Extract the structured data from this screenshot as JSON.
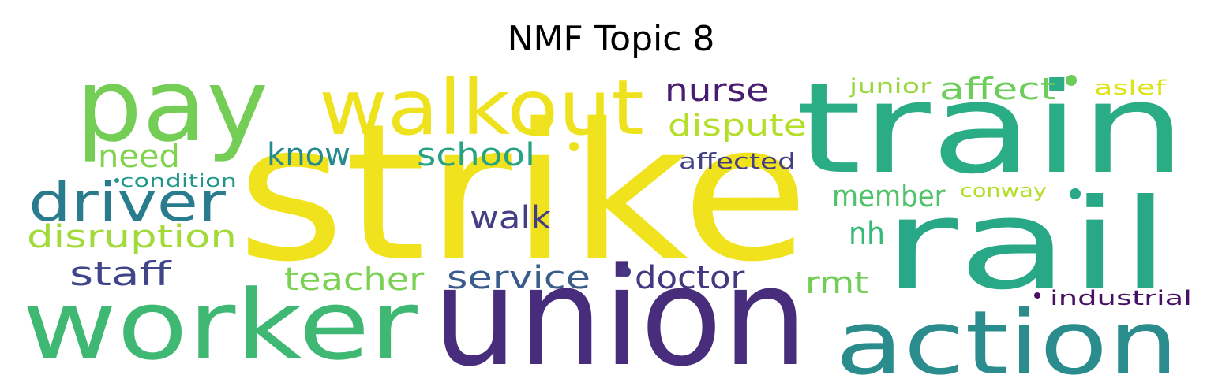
{
  "title": "NMF Topic 8",
  "words": [
    {
      "text": "strike",
      "color": "#f0e21c"
    },
    {
      "text": "union",
      "color": "#472d7b"
    },
    {
      "text": "train",
      "color": "#2aac84"
    },
    {
      "text": "rail",
      "color": "#28a886"
    },
    {
      "text": "worker",
      "color": "#3fb873"
    },
    {
      "text": "pay",
      "color": "#74cd54"
    },
    {
      "text": "action",
      "color": "#2a8c8c"
    },
    {
      "text": "walkout",
      "color": "#ede21d"
    },
    {
      "text": "driver",
      "color": "#297b8e"
    },
    {
      "text": "disruption",
      "color": "#a2da3a"
    },
    {
      "text": "staff",
      "color": "#404488"
    },
    {
      "text": "teacher",
      "color": "#7ad152"
    },
    {
      "text": "service",
      "color": "#3a5c8c"
    },
    {
      "text": "doctor",
      "color": "#453781"
    },
    {
      "text": "nurse",
      "color": "#481c6e"
    },
    {
      "text": "dispute",
      "color": "#b5de2b"
    },
    {
      "text": "know",
      "color": "#238a8d"
    },
    {
      "text": "school",
      "color": "#26a384"
    },
    {
      "text": "need",
      "color": "#81d34d"
    },
    {
      "text": "member",
      "color": "#4fc26b"
    },
    {
      "text": "nh",
      "color": "#38b977"
    },
    {
      "text": "rmt",
      "color": "#71cd55"
    },
    {
      "text": "walk",
      "color": "#433e85"
    },
    {
      "text": "affect",
      "color": "#6ccd5a"
    },
    {
      "text": "affected",
      "color": "#433e85"
    },
    {
      "text": "junior",
      "color": "#98d83e"
    },
    {
      "text": "aslef",
      "color": "#dde318"
    },
    {
      "text": "condition",
      "color": "#1f978b"
    },
    {
      "text": "conway",
      "color": "#b5de2b"
    },
    {
      "text": "industrial",
      "color": "#471063"
    }
  ]
}
